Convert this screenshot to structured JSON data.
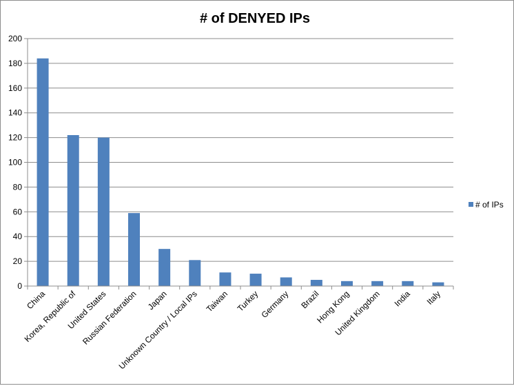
{
  "chart_data": {
    "type": "bar",
    "title": "# of DENYED IPs",
    "xlabel": "",
    "ylabel": "",
    "categories": [
      "China",
      "Korea, Republic of",
      "United States",
      "Russian Federation",
      "Japan",
      "Unknown Country / Local IPs",
      "Taiwan",
      "Turkey",
      "Germany",
      "Brazil",
      "Hong Kong",
      "United Kingdom",
      "India",
      "Italy"
    ],
    "series": [
      {
        "name": "# of IPs",
        "values": [
          184,
          122,
          120,
          59,
          30,
          21,
          11,
          10,
          7,
          5,
          4,
          4,
          4,
          3
        ]
      }
    ],
    "ylim": [
      0,
      200
    ],
    "yticks": [
      0,
      20,
      40,
      60,
      80,
      100,
      120,
      140,
      160,
      180,
      200
    ],
    "grid": true,
    "legend_position": "right",
    "colors": {
      "bar": "#4f81bd",
      "grid": "#8c8c8c",
      "axis": "#8c8c8c"
    }
  }
}
